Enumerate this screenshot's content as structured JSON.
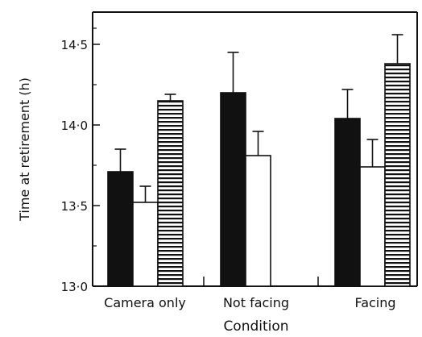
{
  "chart_data": {
    "type": "bar",
    "title": "",
    "xlabel": "Condition",
    "ylabel": "Time at retirement (h)",
    "categories": [
      "Camera only",
      "Not facing",
      "Facing"
    ],
    "ylim": [
      13.0,
      14.7
    ],
    "yticks": [
      "13·0",
      "13·5",
      "14·0",
      "14·5"
    ],
    "ytick_values": [
      13.0,
      13.5,
      14.0,
      14.5
    ],
    "grid": false,
    "legend": "none",
    "series": [
      {
        "fill": "solid",
        "values": [
          13.71,
          14.2,
          14.04
        ],
        "errors": [
          0.14,
          0.25,
          0.18
        ]
      },
      {
        "fill": "open",
        "values": [
          13.52,
          13.81,
          13.74
        ],
        "errors": [
          0.1,
          0.15,
          0.17
        ]
      },
      {
        "fill": "striped",
        "values": [
          14.15,
          null,
          14.38
        ],
        "errors": [
          0.04,
          null,
          0.18
        ]
      }
    ],
    "colors": {
      "ink": "#111111",
      "paper": "#ffffff"
    }
  }
}
